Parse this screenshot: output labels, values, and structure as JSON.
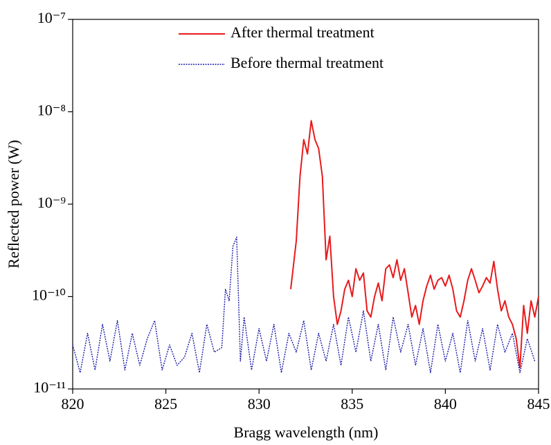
{
  "chart_data": {
    "type": "line",
    "xlabel": "Bragg wavelength (nm)",
    "ylabel": "Reflected power (W)",
    "xlim": [
      820,
      845
    ],
    "xticks": [
      820,
      825,
      830,
      835,
      840,
      845
    ],
    "ylim": [
      1e-11,
      1e-07
    ],
    "yscale": "log",
    "yticks": [
      {
        "value": 1e-11,
        "label": "10⁻¹¹"
      },
      {
        "value": 1e-10,
        "label": "10⁻¹⁰"
      },
      {
        "value": 1e-09,
        "label": "10⁻⁹"
      },
      {
        "value": 1e-08,
        "label": "10⁻⁸"
      },
      {
        "value": 1e-07,
        "label": "10⁻⁷"
      }
    ],
    "legend": "top",
    "series": [
      {
        "name": "After thermal treatment",
        "color": "#e8191b",
        "linestyle": "solid",
        "x": [
          831.7,
          832.0,
          832.2,
          832.4,
          832.6,
          832.8,
          833.0,
          833.2,
          833.4,
          833.6,
          833.8,
          834.0,
          834.2,
          834.4,
          834.6,
          834.8,
          835.0,
          835.2,
          835.4,
          835.6,
          835.8,
          836.0,
          836.2,
          836.4,
          836.6,
          836.8,
          837.0,
          837.2,
          837.4,
          837.6,
          837.8,
          838.0,
          838.2,
          838.4,
          838.6,
          838.8,
          839.0,
          839.2,
          839.4,
          839.6,
          839.8,
          840.0,
          840.2,
          840.4,
          840.6,
          840.8,
          841.0,
          841.2,
          841.4,
          841.6,
          841.8,
          842.0,
          842.2,
          842.4,
          842.6,
          842.8,
          843.0,
          843.2,
          843.4,
          843.6,
          843.8,
          844.0,
          844.2,
          844.4,
          844.6,
          844.8,
          845.0
        ],
        "values": [
          1.2e-10,
          4e-10,
          2e-09,
          5e-09,
          3.5e-09,
          8e-09,
          5e-09,
          4e-09,
          2e-09,
          2.5e-10,
          4.5e-10,
          1e-10,
          5e-11,
          7e-11,
          1.2e-10,
          1.5e-10,
          1e-10,
          2e-10,
          1.5e-10,
          1.8e-10,
          7e-11,
          6e-11,
          1e-10,
          1.4e-10,
          9e-11,
          2e-10,
          2.2e-10,
          1.6e-10,
          2.5e-10,
          1.5e-10,
          2e-10,
          1.1e-10,
          6e-11,
          8e-11,
          5e-11,
          9e-11,
          1.3e-10,
          1.7e-10,
          1.2e-10,
          1.5e-10,
          1.6e-10,
          1.3e-10,
          1.7e-10,
          1.2e-10,
          7e-11,
          6e-11,
          9e-11,
          1.5e-10,
          2e-10,
          1.5e-10,
          1.1e-10,
          1.3e-10,
          1.6e-10,
          1.4e-10,
          2.4e-10,
          1.2e-10,
          7e-11,
          9e-11,
          6e-11,
          5e-11,
          3.5e-11,
          1.7e-11,
          8e-11,
          4e-11,
          9e-11,
          6e-11,
          1e-10
        ]
      },
      {
        "name": "Before thermal treatment",
        "color": "#1a1aa6",
        "linestyle": "dotted",
        "x": [
          820.0,
          820.4,
          820.8,
          821.2,
          821.6,
          822.0,
          822.4,
          822.8,
          823.2,
          823.6,
          824.0,
          824.4,
          824.8,
          825.2,
          825.6,
          826.0,
          826.4,
          826.8,
          827.2,
          827.6,
          828.0,
          828.2,
          828.4,
          828.6,
          828.8,
          829.0,
          829.2,
          829.6,
          830.0,
          830.4,
          830.8,
          831.2,
          831.6,
          832.0,
          832.4,
          832.8,
          833.2,
          833.6,
          834.0,
          834.4,
          834.8,
          835.2,
          835.6,
          836.0,
          836.4,
          836.8,
          837.2,
          837.6,
          838.0,
          838.4,
          838.8,
          839.2,
          839.6,
          840.0,
          840.4,
          840.8,
          841.2,
          841.6,
          842.0,
          842.4,
          842.8,
          843.2,
          843.6,
          844.0,
          844.4,
          844.8
        ],
        "values": [
          3e-11,
          1.5e-11,
          4e-11,
          1.6e-11,
          5e-11,
          2e-11,
          5.5e-11,
          1.6e-11,
          4e-11,
          1.8e-11,
          3.5e-11,
          5.5e-11,
          1.6e-11,
          3e-11,
          1.8e-11,
          2.2e-11,
          4e-11,
          1.5e-11,
          5e-11,
          2.5e-11,
          2.8e-11,
          1.2e-10,
          9e-11,
          3.5e-10,
          4.4e-10,
          2e-11,
          6e-11,
          1.6e-11,
          4.5e-11,
          2e-11,
          5e-11,
          1.5e-11,
          4e-11,
          2.5e-11,
          5.5e-11,
          1.6e-11,
          4e-11,
          2e-11,
          5e-11,
          1.8e-11,
          6e-11,
          2.5e-11,
          7e-11,
          2e-11,
          5e-11,
          1.6e-11,
          6e-11,
          2.5e-11,
          5e-11,
          1.8e-11,
          4.5e-11,
          1.5e-11,
          5e-11,
          2e-11,
          4e-11,
          1.5e-11,
          5.5e-11,
          2e-11,
          4.5e-11,
          1.6e-11,
          5e-11,
          2.5e-11,
          4e-11,
          1.5e-11,
          3.5e-11,
          2e-11
        ]
      }
    ]
  }
}
